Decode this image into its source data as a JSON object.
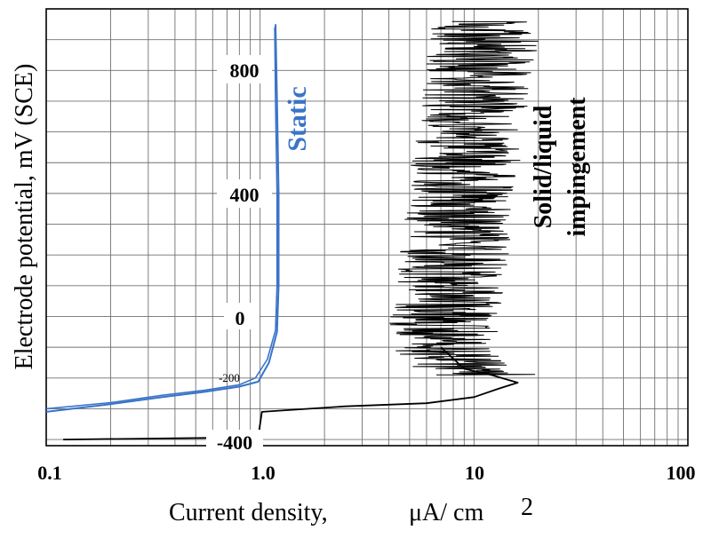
{
  "chart_data": {
    "type": "line",
    "title": "",
    "xlabel": "Current density,",
    "xlabel_unit": "μA/ cm",
    "xlabel_unit_exp": "2",
    "ylabel": "Electrode potential, mV (SCE)",
    "x_scale": "log",
    "xlim": [
      0.1,
      100
    ],
    "ylim": [
      -420,
      1000
    ],
    "x_ticks": [
      "0.1",
      "1.0",
      "10",
      "100"
    ],
    "y_ticks": [
      "800",
      "400",
      "0",
      "-400"
    ],
    "y_minor_label": "-200",
    "grid": true,
    "legend": "none (curves labelled inline)",
    "series": [
      {
        "name": "Static",
        "color": "#3a74c8",
        "points": [
          [
            0.1,
            -310
          ],
          [
            0.2,
            -285
          ],
          [
            0.35,
            -262
          ],
          [
            0.55,
            -245
          ],
          [
            0.8,
            -228
          ],
          [
            0.98,
            -212
          ],
          [
            1.1,
            -150
          ],
          [
            1.2,
            -50
          ],
          [
            1.22,
            100
          ],
          [
            1.22,
            400
          ],
          [
            1.2,
            700
          ],
          [
            1.18,
            950
          ]
        ],
        "return_points": [
          [
            1.17,
            940
          ],
          [
            1.18,
            700
          ],
          [
            1.2,
            400
          ],
          [
            1.2,
            100
          ],
          [
            1.18,
            -45
          ],
          [
            1.08,
            -140
          ],
          [
            0.95,
            -200
          ],
          [
            0.8,
            -222
          ],
          [
            0.55,
            -240
          ],
          [
            0.35,
            -256
          ],
          [
            0.2,
            -280
          ],
          [
            0.1,
            -300
          ]
        ]
      },
      {
        "name": "Solid/liquid impingement",
        "color": "#000000",
        "base": [
          [
            0.12,
            -400
          ],
          [
            0.55,
            -395
          ],
          [
            0.98,
            -390
          ],
          [
            1.02,
            -310
          ],
          [
            2.5,
            -292
          ],
          [
            6,
            -282
          ],
          [
            10,
            -262
          ],
          [
            13,
            -235
          ],
          [
            16,
            -215
          ],
          [
            12,
            -190
          ],
          [
            9,
            -170
          ],
          [
            7,
            -100
          ],
          [
            7.5,
            50
          ],
          [
            8.5,
            300
          ],
          [
            9.5,
            600
          ],
          [
            10.5,
            800
          ],
          [
            11.5,
            950
          ]
        ],
        "noise_from_mV": -190,
        "noise_amplitude": 1.8
      }
    ],
    "annotations": {
      "static": "Static",
      "solid_line1": "Solid/liquid",
      "solid_line2": "impingement"
    }
  }
}
